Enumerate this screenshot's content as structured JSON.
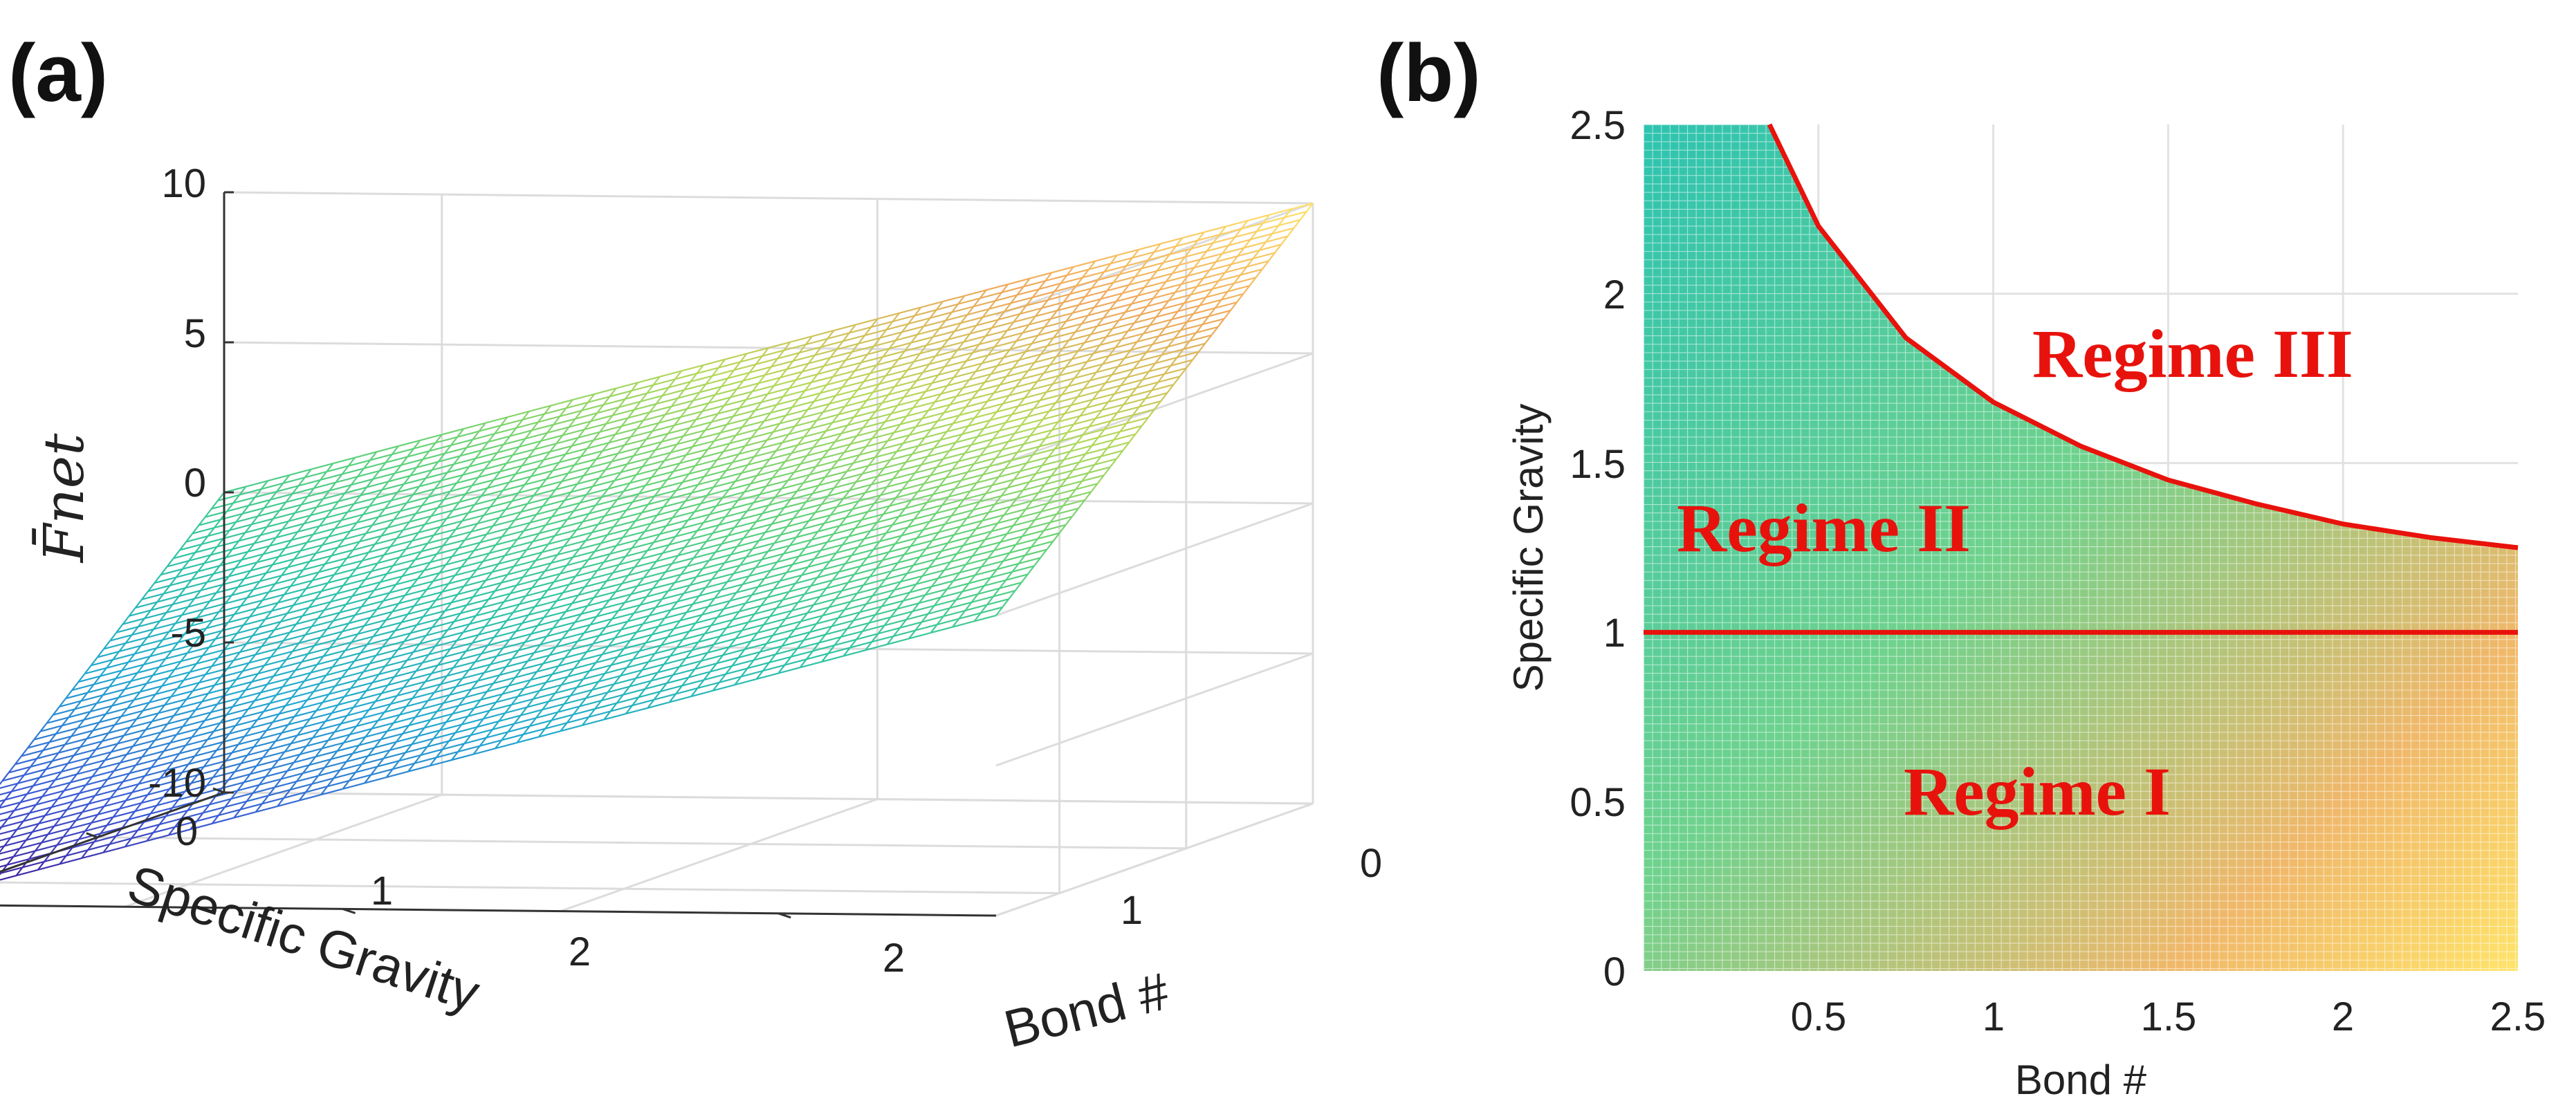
{
  "panels": {
    "a": {
      "label": "(a)"
    },
    "b": {
      "label": "(b)"
    }
  },
  "colors": {
    "regime_curve": "#e8120c",
    "regime_text": "#e8120c",
    "colormap": [
      "#440d8a",
      "#3b5ad6",
      "#22a8d0",
      "#2fc5a3",
      "#5fd27a",
      "#b6d85a",
      "#f0a85c",
      "#ffe36a"
    ]
  },
  "chart_data": [
    {
      "type": "surface",
      "panel": "(a)",
      "xlabel": "Bond #",
      "ylabel": "Specific Gravity",
      "zlabel": "F̄net",
      "x_ticks": [
        "0",
        "1",
        "2"
      ],
      "y_ticks": [
        "0",
        "1",
        "2"
      ],
      "z_ticks": [
        "10",
        "5",
        "0",
        "-5",
        "-10"
      ],
      "xlim": [
        0,
        2.5
      ],
      "ylim": [
        0,
        2.5
      ],
      "zlim": [
        -10,
        10
      ],
      "corners": [
        {
          "bond": 0,
          "sg": 0,
          "f": 10
        },
        {
          "bond": 2.5,
          "sg": 0,
          "f": 0
        },
        {
          "bond": 0,
          "sg": 2.5,
          "f": 0
        },
        {
          "bond": 2.5,
          "sg": 2.5,
          "f": -10
        }
      ],
      "colormap": "viridis-like, yellow high to purple low",
      "grid": true
    },
    {
      "type": "heatmap",
      "panel": "(b)",
      "xlabel": "Bond #",
      "ylabel": "Specific Gravity",
      "x_ticks": [
        "0.5",
        "1",
        "1.5",
        "2",
        "2.5"
      ],
      "y_ticks": [
        "0",
        "0.5",
        "1",
        "1.5",
        "2",
        "2.5"
      ],
      "xlim": [
        0,
        2.5
      ],
      "ylim": [
        0,
        2.5
      ],
      "boundary_lines": [
        {
          "name": "Specific Gravity = 1",
          "x": [
            0,
            2.5
          ],
          "y": [
            1,
            1
          ]
        },
        {
          "name": "regime boundary curve",
          "x": [
            0.36,
            0.5,
            0.75,
            1.0,
            1.25,
            1.5,
            1.75,
            2.0,
            2.25,
            2.5
          ],
          "y": [
            2.5,
            2.2,
            1.87,
            1.68,
            1.55,
            1.45,
            1.38,
            1.32,
            1.28,
            1.25
          ]
        }
      ],
      "annotations": [
        {
          "text": "Regime III",
          "x": 1.65,
          "y": 1.85
        },
        {
          "text": "Regime II",
          "x": 0.55,
          "y": 1.35
        },
        {
          "text": "Regime I",
          "x": 1.45,
          "y": 0.5
        }
      ],
      "grid": true
    }
  ]
}
